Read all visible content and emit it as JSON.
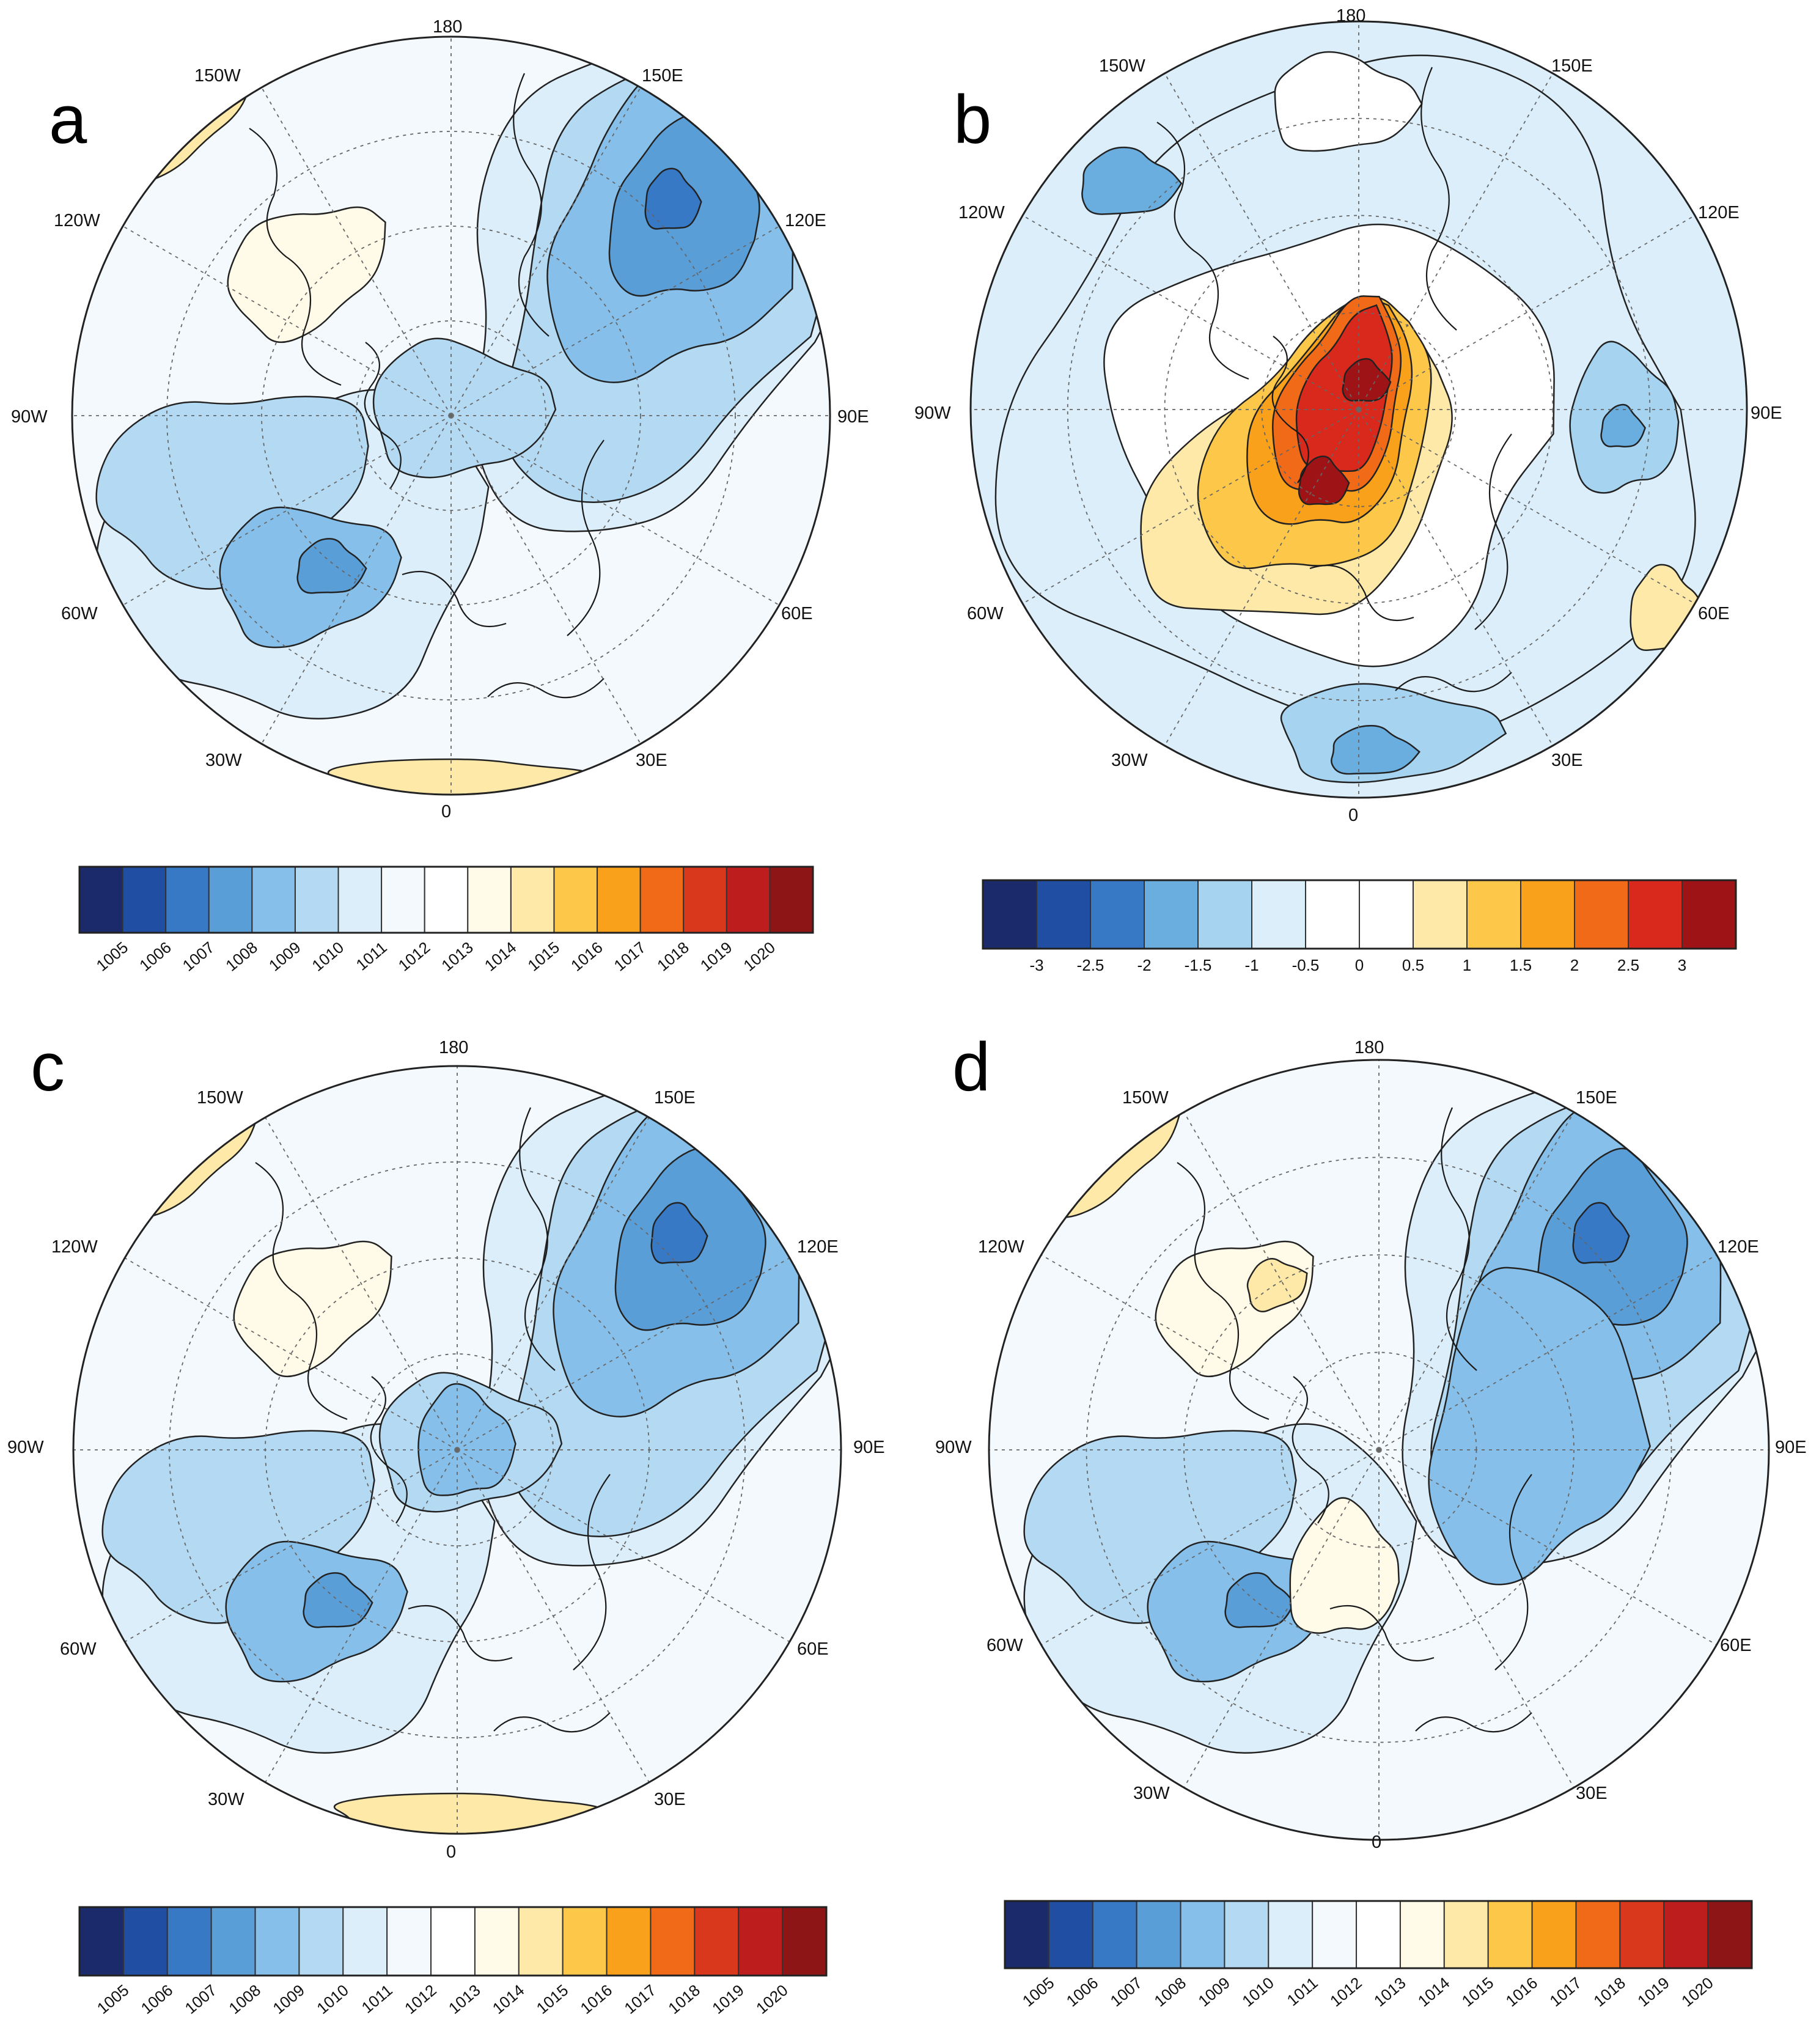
{
  "panels": [
    {
      "id": "a",
      "letter": "a",
      "lon_labels": {
        "n": "180",
        "nw": "150W",
        "ne": "150E",
        "wnw": "120W",
        "ene": "120E",
        "w": "90W",
        "e": "90E",
        "wsw": "60W",
        "ese": "60E",
        "sw": "30W",
        "se": "30E",
        "s": "0"
      },
      "colorbar": {
        "ticks": [
          "1005",
          "1006",
          "1007",
          "1008",
          "1009",
          "1010",
          "1011",
          "1012",
          "1013",
          "1014",
          "1015",
          "1016",
          "1017",
          "1018",
          "1019",
          "1020"
        ],
        "colors": [
          "#1b2a6b",
          "#1f4ea2",
          "#3879c6",
          "#5a9ed8",
          "#86c0ea",
          "#b4daf3",
          "#dbeefa",
          "#f4f9fd",
          "#ffffff",
          "#fffbe8",
          "#fee9a8",
          "#fdc84a",
          "#f9a11b",
          "#f06a17",
          "#d9381c",
          "#be1d1e",
          "#8e1516"
        ],
        "tick_rotation": true
      },
      "map": {
        "style": "slp_a"
      }
    },
    {
      "id": "b",
      "letter": "b",
      "lon_labels": {
        "n": "180",
        "nw": "150W",
        "ne": "150E",
        "wnw": "120W",
        "ene": "120E",
        "w": "90W",
        "e": "90E",
        "wsw": "60W",
        "ese": "60E",
        "sw": "30W",
        "se": "30E",
        "s": "0"
      },
      "colorbar": {
        "ticks": [
          "-3",
          "-2.5",
          "-2",
          "-1.5",
          "-1",
          "-0.5",
          "0",
          "0.5",
          "1",
          "1.5",
          "2",
          "2.5",
          "3"
        ],
        "colors": [
          "#1b2a6b",
          "#1f4ea2",
          "#3879c6",
          "#6aaee0",
          "#a6d4f0",
          "#dbeefa",
          "#ffffff",
          "#ffffff",
          "#fee9a8",
          "#fdc84a",
          "#f9a11b",
          "#f06a17",
          "#d9281c",
          "#9e1416"
        ],
        "tick_rotation": false
      },
      "map": {
        "style": "diff_b"
      }
    },
    {
      "id": "c",
      "letter": "c",
      "lon_labels": {
        "n": "180",
        "nw": "150W",
        "ne": "150E",
        "wnw": "120W",
        "ene": "120E",
        "w": "90W",
        "e": "90E",
        "wsw": "60W",
        "ese": "60E",
        "sw": "30W",
        "se": "30E",
        "s": "0"
      },
      "colorbar": {
        "ticks": [
          "1005",
          "1006",
          "1007",
          "1008",
          "1009",
          "1010",
          "1011",
          "1012",
          "1013",
          "1014",
          "1015",
          "1016",
          "1017",
          "1018",
          "1019",
          "1020"
        ],
        "colors": [
          "#1b2a6b",
          "#1f4ea2",
          "#3879c6",
          "#5a9ed8",
          "#86c0ea",
          "#b4daf3",
          "#dbeefa",
          "#f4f9fd",
          "#ffffff",
          "#fffbe8",
          "#fee9a8",
          "#fdc84a",
          "#f9a11b",
          "#f06a17",
          "#d9381c",
          "#be1d1e",
          "#8e1516"
        ],
        "tick_rotation": true
      },
      "map": {
        "style": "slp_c"
      }
    },
    {
      "id": "d",
      "letter": "d",
      "lon_labels": {
        "n": "180",
        "nw": "150W",
        "ne": "150E",
        "wnw": "120W",
        "ene": "120E",
        "w": "90W",
        "e": "90E",
        "wsw": "60W",
        "ese": "60E",
        "sw": "30W",
        "se": "30E",
        "s": "0"
      },
      "colorbar": {
        "ticks": [
          "1005",
          "1006",
          "1007",
          "1008",
          "1009",
          "1010",
          "1011",
          "1012",
          "1013",
          "1014",
          "1015",
          "1016",
          "1017",
          "1018",
          "1019",
          "1020"
        ],
        "colors": [
          "#1b2a6b",
          "#1f4ea2",
          "#3879c6",
          "#5a9ed8",
          "#86c0ea",
          "#b4daf3",
          "#dbeefa",
          "#f4f9fd",
          "#ffffff",
          "#fffbe8",
          "#fee9a8",
          "#fdc84a",
          "#f9a11b",
          "#f06a17",
          "#d9381c",
          "#be1d1e",
          "#8e1516"
        ],
        "tick_rotation": true
      },
      "map": {
        "style": "slp_d"
      }
    }
  ]
}
